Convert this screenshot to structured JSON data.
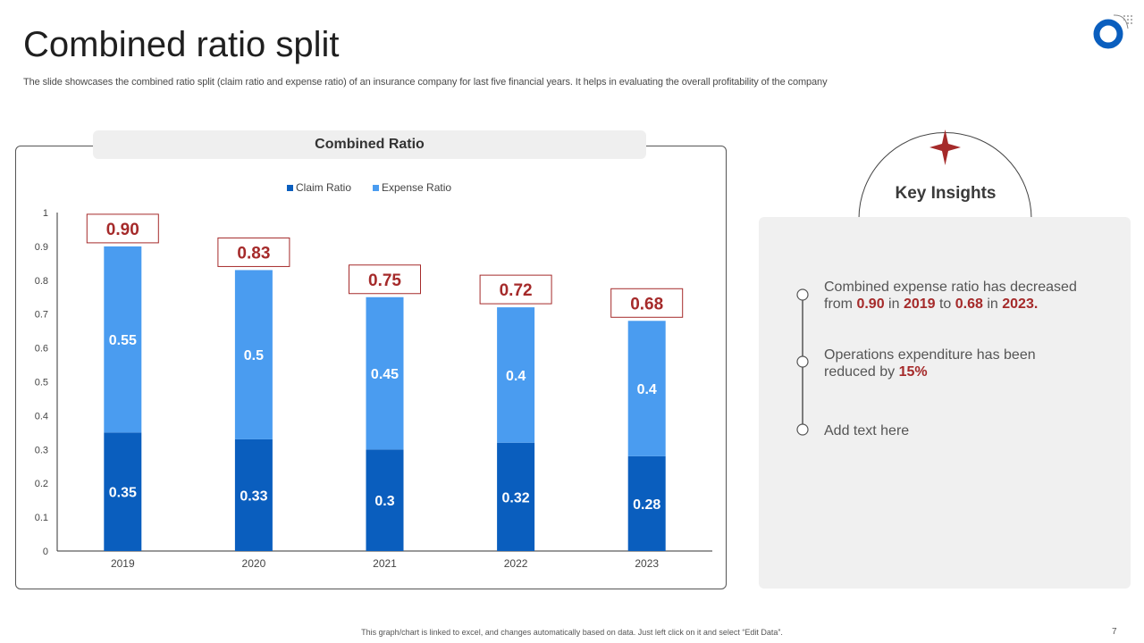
{
  "slide": {
    "title": "Combined ratio split",
    "subtitle": "The slide showcases the combined ratio split (claim ratio and expense ratio) of an insurance company for last five financial years. It helps in evaluating the overall profitability of the company",
    "footer_note": "This graph/chart is linked to excel, and changes automatically based on data. Just left click on it and select “Edit Data”.",
    "page_number": "7"
  },
  "chart_header": "Combined Ratio",
  "chart_data": {
    "type": "bar",
    "stacked": true,
    "title": "Combined Ratio",
    "categories": [
      "2019",
      "2020",
      "2021",
      "2022",
      "2023"
    ],
    "series": [
      {
        "name": "Claim Ratio",
        "values": [
          0.35,
          0.33,
          0.3,
          0.32,
          0.28
        ],
        "labels": [
          "0.35",
          "0.33",
          "0.3",
          "0.32",
          "0.28"
        ],
        "color": "#0a5ebe"
      },
      {
        "name": "Expense Ratio",
        "values": [
          0.55,
          0.5,
          0.45,
          0.4,
          0.4
        ],
        "labels": [
          "0.55",
          "0.5",
          "0.45",
          "0.4",
          "0.4"
        ],
        "color": "#4a9cf0"
      }
    ],
    "totals": [
      "0.90",
      "0.83",
      "0.75",
      "0.72",
      "0.68"
    ],
    "ylim": [
      0,
      1
    ],
    "yticks": [
      "0",
      "0.1",
      "0.2",
      "0.3",
      "0.4",
      "0.5",
      "0.6",
      "0.7",
      "0.8",
      "0.9",
      "1"
    ],
    "legend_position": "top-center",
    "grid": false,
    "xlabel": "",
    "ylabel": ""
  },
  "insights": {
    "title": "Key Insights",
    "items": [
      {
        "p1": "Combined expense ratio has decreased from ",
        "v1": "0.90",
        "p2": " in ",
        "v2": "2019",
        "p3": " to ",
        "v3": "0.68",
        "p4": " in ",
        "v4": "2023."
      },
      {
        "p1": "Operations expenditure has been reduced by ",
        "v1": "15%"
      },
      {
        "p1": "Add text here"
      }
    ]
  },
  "colors": {
    "claim": "#0a5ebe",
    "expense": "#4a9cf0",
    "accent_red": "#a52a2a",
    "panel_bg": "#f0f0f0",
    "logo_blue": "#0a5ebe"
  }
}
